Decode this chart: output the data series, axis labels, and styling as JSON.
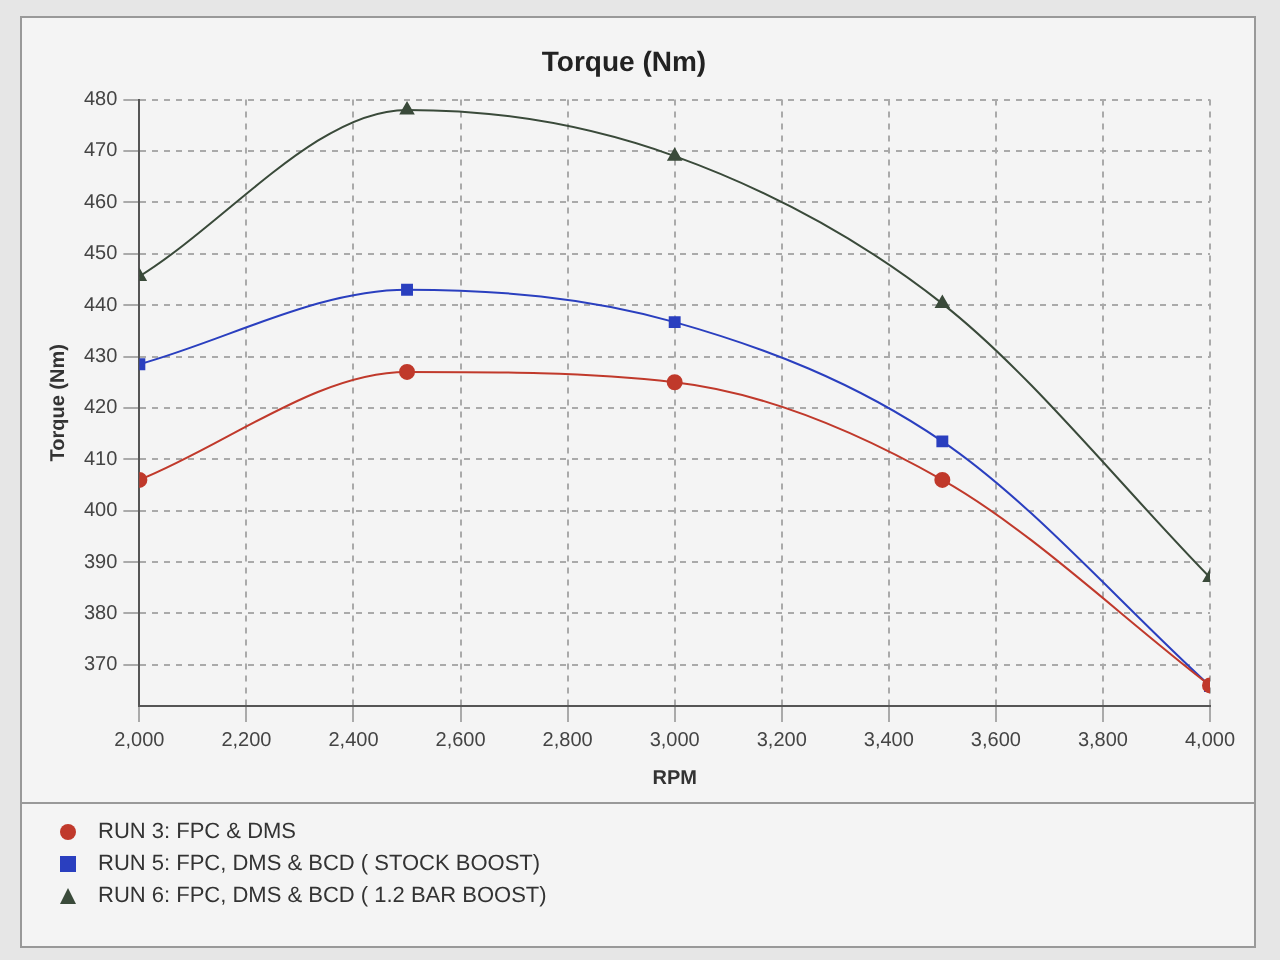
{
  "chart_data": {
    "type": "line",
    "title": "Torque (Nm)",
    "xlabel": "RPM",
    "ylabel": "Torque (Nm)",
    "x": [
      2000,
      2500,
      3000,
      3500,
      4000
    ],
    "series": [
      {
        "name": "RUN 3: FPC & DMS",
        "color": "#c0392b",
        "marker": "circle",
        "values": [
          406,
          427,
          425,
          406,
          366
        ]
      },
      {
        "name": "RUN 5: FPC, DMS & BCD ( STOCK BOOST)",
        "color": "#2a3fbf",
        "marker": "square",
        "values": [
          428.5,
          443,
          436.7,
          413.5,
          365.9
        ]
      },
      {
        "name": "RUN 6: FPC, DMS & BCD ( 1.2 BAR BOOST)",
        "color": "#3a4a3a",
        "marker": "triangle",
        "values": [
          445.6,
          478,
          469,
          440.3,
          387
        ]
      }
    ],
    "xlim": [
      2000,
      4000
    ],
    "xticks": [
      {
        "value": 2000,
        "label": "2,000"
      },
      {
        "value": 2200,
        "label": "2,200"
      },
      {
        "value": 2400,
        "label": "2,400"
      },
      {
        "value": 2600,
        "label": "2,600"
      },
      {
        "value": 2800,
        "label": "2,800"
      },
      {
        "value": 3000,
        "label": "3,000"
      },
      {
        "value": 3200,
        "label": "3,200"
      },
      {
        "value": 3400,
        "label": "3,400"
      },
      {
        "value": 3600,
        "label": "3,600"
      },
      {
        "value": 3800,
        "label": "3,800"
      },
      {
        "value": 4000,
        "label": "4,000"
      }
    ],
    "ylim": [
      362,
      480
    ],
    "yticks": [
      370,
      380,
      390,
      400,
      410,
      420,
      430,
      440,
      450,
      460,
      470,
      480
    ],
    "grid": true,
    "legend": "bottom",
    "line_style": "solid"
  }
}
